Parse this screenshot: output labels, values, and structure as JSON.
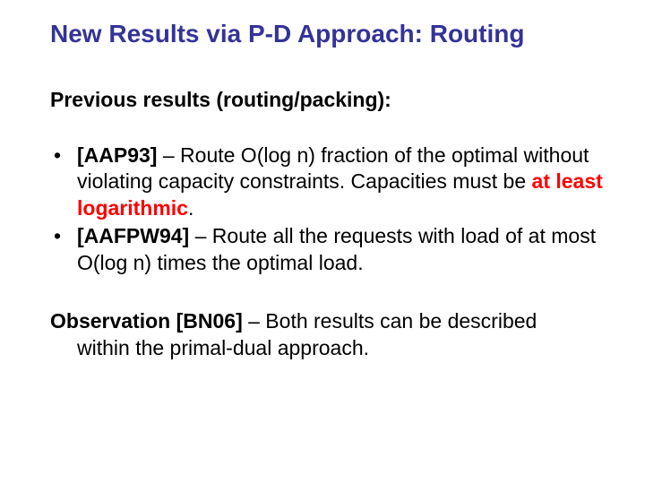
{
  "title": "New Results via P-D Approach: Routing",
  "section_heading": "Previous results (routing/packing):",
  "bullets": [
    {
      "cite": "[AAP93]",
      "pre": " – Route O(log n) fraction of the optimal without violating capacity constraints. Capacities must be ",
      "emph": "at least logarithmic",
      "post": "."
    },
    {
      "cite": "[AAFPW94]",
      "pre": " – Route all the requests with load of at most O(log n) times the optimal load.",
      "emph": "",
      "post": ""
    }
  ],
  "observation": {
    "label": "Observation",
    "cite": "[BN06]",
    "text_line1_rest": " – Both results can be described",
    "text_line2": "within the primal-dual approach."
  },
  "colors": {
    "title": "#333399",
    "body": "#000000",
    "emph": "#ff0000",
    "background": "#ffffff"
  },
  "fonts": {
    "title_size_pt": 21,
    "body_size_pt": 17,
    "family": "Arial"
  }
}
